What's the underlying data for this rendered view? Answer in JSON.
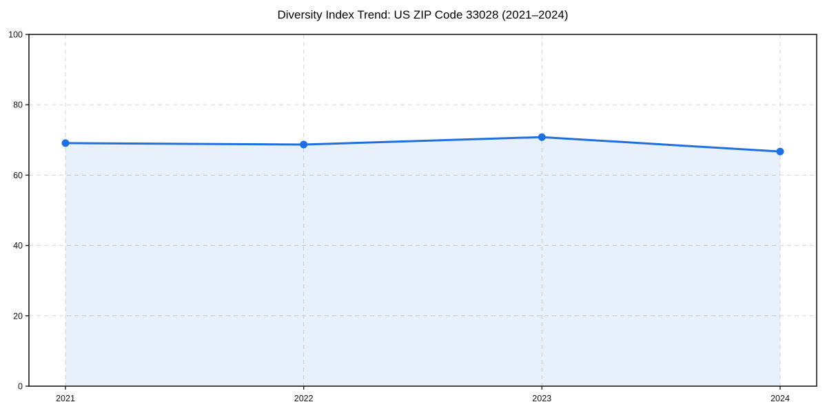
{
  "chart_data": {
    "type": "area",
    "title": "Diversity Index Trend: US ZIP Code 33028 (2021–2024)",
    "x": [
      2021,
      2022,
      2023,
      2024
    ],
    "x_tick_labels": [
      "2021",
      "2022",
      "2023",
      "2024"
    ],
    "series": [
      {
        "name": "Diversity Index",
        "values": [
          69.1,
          68.7,
          70.8,
          66.7
        ]
      }
    ],
    "y_ticks": [
      0,
      20,
      40,
      60,
      80,
      100
    ],
    "ylim": [
      0,
      100
    ],
    "xlabel": "",
    "ylabel": "",
    "grid": "dashed-both-axes",
    "legend_position": "none",
    "colors": {
      "line": "#1f6fe0",
      "marker": "#1f6fe0",
      "area_fill": "rgba(31,111,224,0.10)",
      "gridline": "#d6d6d6",
      "spine": "#1a1a1a",
      "tick_text": "#111111",
      "background": "#ffffff"
    }
  }
}
